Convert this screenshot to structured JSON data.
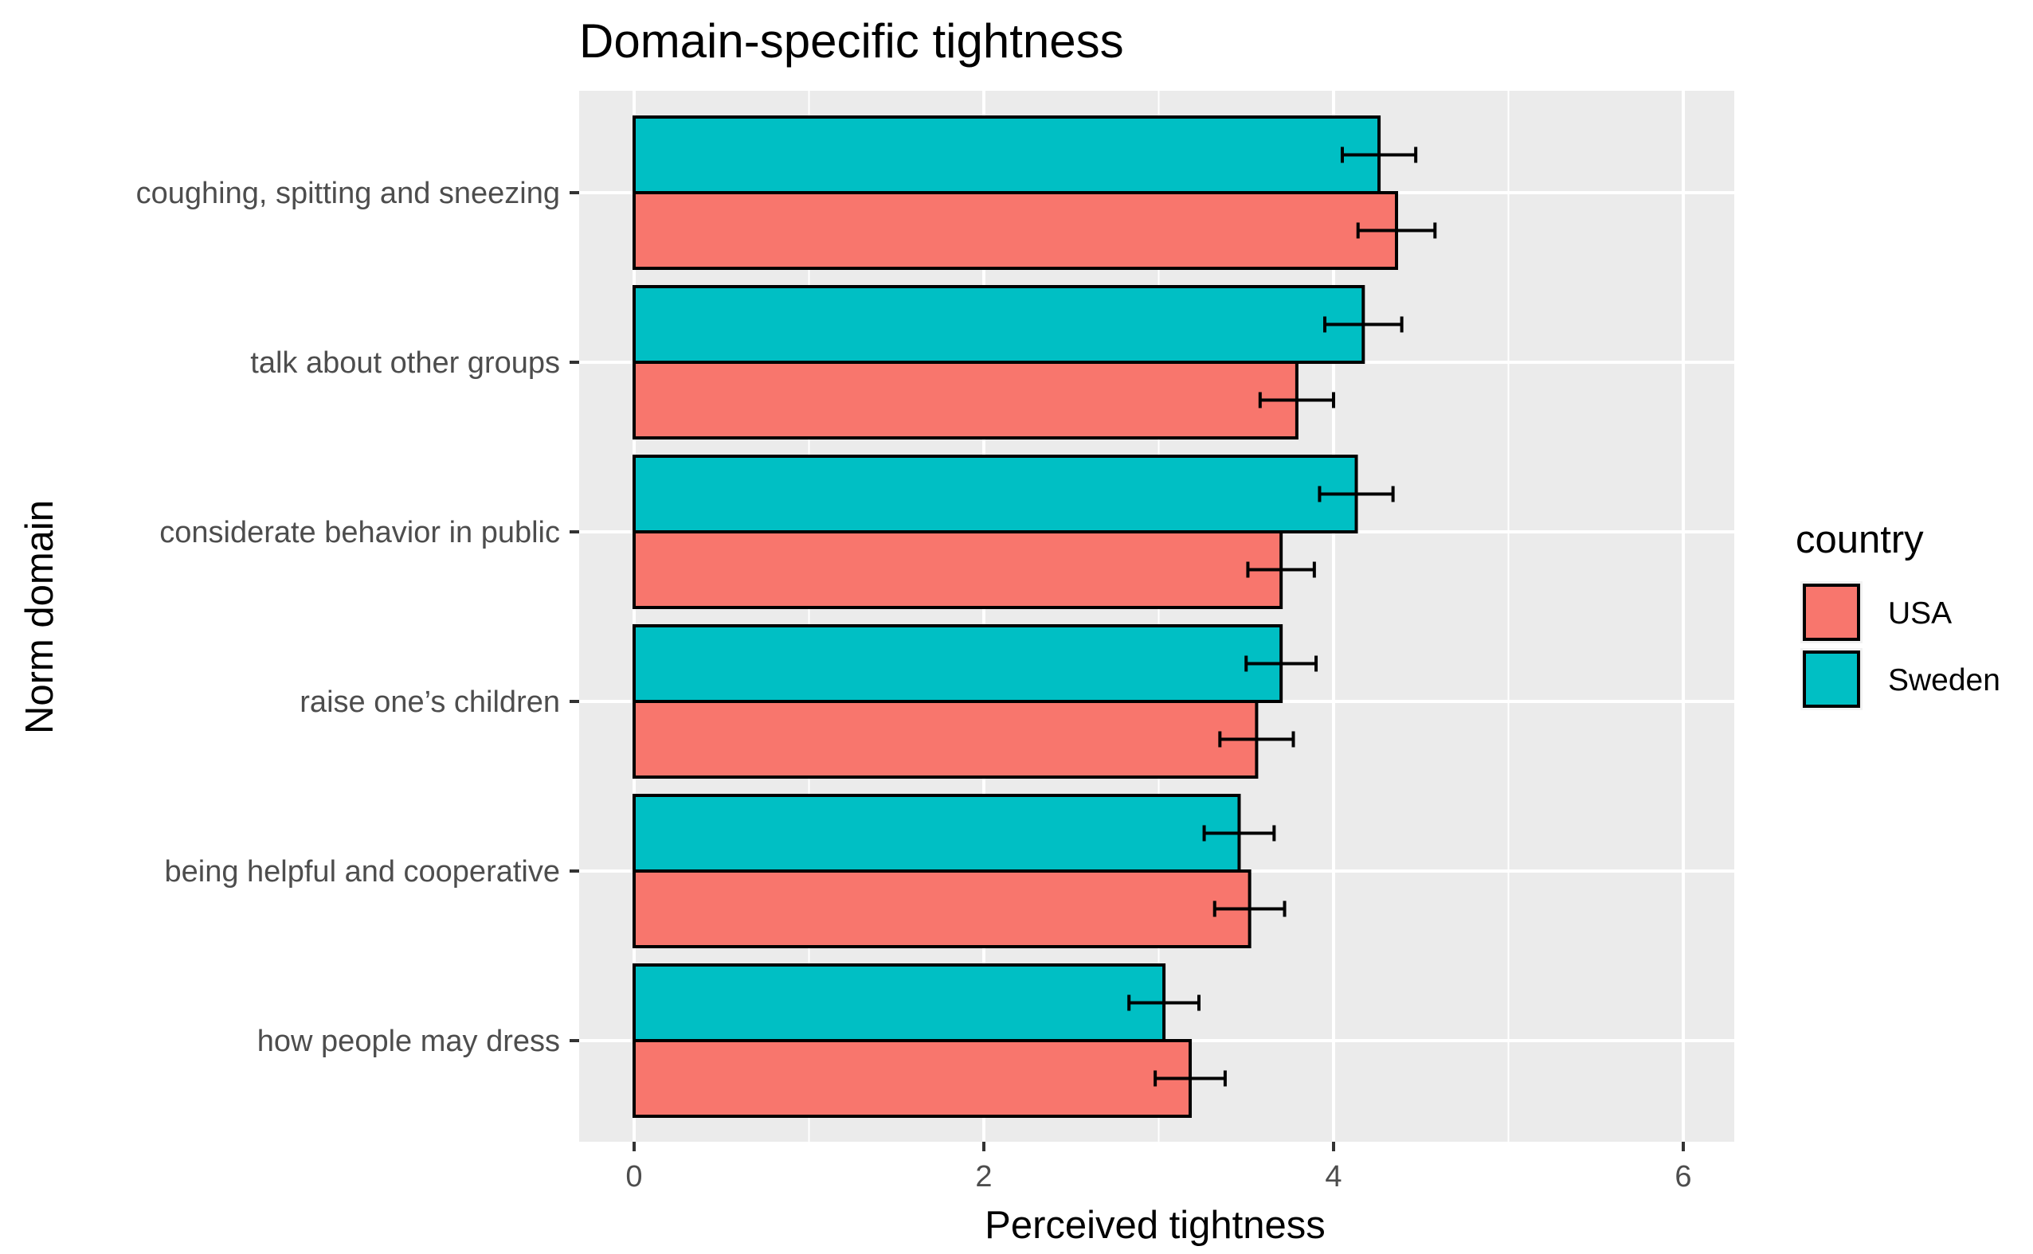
{
  "chart_data": {
    "type": "bar",
    "orientation": "horizontal",
    "title": "Domain-specific tightness",
    "xlabel": "Perceived tightness",
    "ylabel": "Norm domain",
    "xlim": [
      -0.3,
      6.3
    ],
    "x_ticks": [
      0,
      2,
      4,
      6
    ],
    "grid": true,
    "legend_position": "right",
    "legend_title": "country",
    "categories": [
      "coughing, spitting and sneezing",
      "talk about other groups",
      "considerate behavior in public",
      "raise one’s children",
      "being helpful and cooperative",
      "how people may dress"
    ],
    "series": [
      {
        "name": "USA",
        "color": "#f8766d",
        "values": [
          4.36,
          3.79,
          3.7,
          3.56,
          3.52,
          3.18
        ],
        "error": [
          0.22,
          0.21,
          0.19,
          0.21,
          0.2,
          0.2
        ]
      },
      {
        "name": "Sweden",
        "color": "#00bfc4",
        "values": [
          4.26,
          4.17,
          4.13,
          3.7,
          3.46,
          3.03
        ],
        "error": [
          0.21,
          0.22,
          0.21,
          0.2,
          0.2,
          0.2
        ]
      }
    ],
    "legend_order": [
      "USA",
      "Sweden"
    ],
    "panel_background": "#ebebeb",
    "grid_color": "#ffffff"
  }
}
